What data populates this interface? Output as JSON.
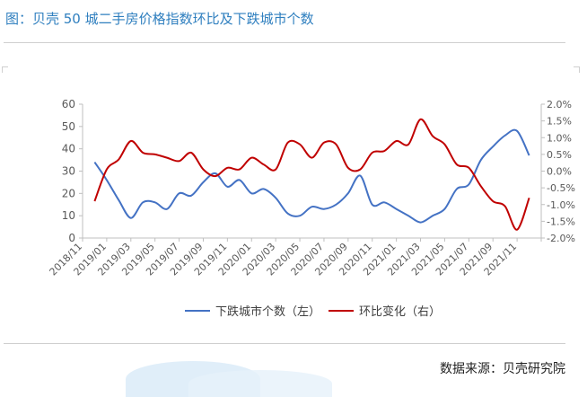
{
  "page": {
    "title": "图：贝壳 50 城二手房价格指数环比及下跌城市个数",
    "source": "数据来源：贝壳研究院"
  },
  "chart_data": {
    "type": "line",
    "left_axis": {
      "ylim": [
        0,
        60
      ],
      "ticks": [
        "0",
        "10",
        "20",
        "30",
        "40",
        "50",
        "60"
      ]
    },
    "right_axis": {
      "ylim": [
        -2.0,
        2.0
      ],
      "ticks": [
        "-2.0%",
        "-1.5%",
        "-1.0%",
        "-0.5%",
        "0.0%",
        "0.5%",
        "1.0%",
        "1.5%",
        "2.0%"
      ]
    },
    "x_tick_labels": [
      "2018/11",
      "2019/01",
      "2019/03",
      "2019/05",
      "2019/07",
      "2019/09",
      "2019/11",
      "2020/01",
      "2020/03",
      "2020/05",
      "2020/07",
      "2020/09",
      "2020/11",
      "2021/01",
      "2021/03",
      "2021/05",
      "2021/07",
      "2021/09",
      "2021/11"
    ],
    "x": [
      "2018/12",
      "2019/01",
      "2019/02",
      "2019/03",
      "2019/04",
      "2019/05",
      "2019/06",
      "2019/07",
      "2019/08",
      "2019/09",
      "2019/10",
      "2019/11",
      "2019/12",
      "2020/01",
      "2020/02",
      "2020/03",
      "2020/04",
      "2020/05",
      "2020/06",
      "2020/07",
      "2020/08",
      "2020/09",
      "2020/10",
      "2020/11",
      "2020/12",
      "2021/01",
      "2021/02",
      "2021/03",
      "2021/04",
      "2021/05",
      "2021/06",
      "2021/07",
      "2021/08",
      "2021/09",
      "2021/10",
      "2021/11",
      "2021/12"
    ],
    "series": [
      {
        "name": "下跌城市个数（左）",
        "axis": "left",
        "color": "#4472c4",
        "values": [
          34,
          26,
          17,
          9,
          16,
          16,
          13,
          20,
          19,
          25,
          29,
          23,
          26,
          20,
          22,
          18,
          11,
          10,
          14,
          13,
          15,
          20,
          28,
          15,
          16,
          13,
          10,
          7,
          10,
          13,
          22,
          24,
          35,
          41,
          46,
          48,
          37
        ]
      },
      {
        "name": "环比变化（右）",
        "axis": "right",
        "color": "#c00000",
        "values": [
          -0.9,
          0.05,
          0.35,
          0.9,
          0.55,
          0.5,
          0.4,
          0.3,
          0.55,
          0.05,
          -0.15,
          0.1,
          0.05,
          0.4,
          0.2,
          0.05,
          0.85,
          0.8,
          0.4,
          0.85,
          0.8,
          0.1,
          0.05,
          0.55,
          0.6,
          0.9,
          0.8,
          1.55,
          1.05,
          0.8,
          0.2,
          0.1,
          -0.45,
          -0.9,
          -1.05,
          -1.75,
          -0.8
        ]
      }
    ],
    "legend_position": "bottom",
    "grid": false
  }
}
